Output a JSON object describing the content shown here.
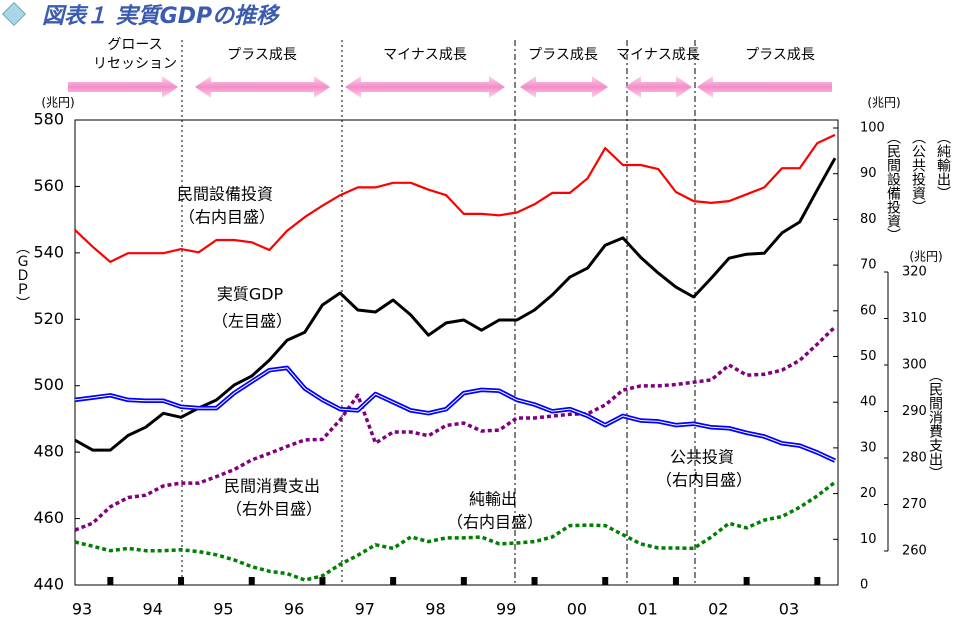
{
  "chart_data": {
    "type": "line",
    "title": "図表１ 実質GDPの推移",
    "phases": [
      [
        "グロース",
        "リセッション"
      ],
      [
        "プラス成長"
      ],
      [
        "マイナス成長"
      ],
      [
        "プラス成長"
      ],
      [
        "マイナス成長"
      ],
      [
        "プラス成長"
      ]
    ],
    "yunit": "(兆円)",
    "y2unit": "(兆円)",
    "y3unit": "(兆円)",
    "ylabel": "（ＧＤＰ）",
    "y2label": [
      "（民間設備投資）",
      "（公共投資）",
      "（純輸出）"
    ],
    "y3label": "（民間消費支出）",
    "categories": [
      "93",
      null,
      null,
      null,
      "94",
      null,
      null,
      null,
      "95",
      null,
      null,
      null,
      "96",
      null,
      null,
      null,
      "97",
      null,
      null,
      null,
      "98",
      null,
      null,
      null,
      "99",
      null,
      null,
      null,
      "00",
      null,
      null,
      null,
      "01",
      null,
      null,
      null,
      "02",
      null,
      null,
      null,
      "03",
      null,
      null,
      null
    ],
    "ylim": [
      440,
      580
    ],
    "yticks": [
      440,
      460,
      480,
      500,
      520,
      540,
      560,
      580
    ],
    "y2lim": [
      0,
      100
    ],
    "y2ticks": [
      0,
      10,
      20,
      30,
      40,
      50,
      60,
      70,
      80,
      90,
      100
    ],
    "y3lim": [
      260,
      320
    ],
    "y3ticks": [
      260,
      270,
      280,
      290,
      300,
      310,
      320
    ],
    "series": [
      {
        "name": "民間設備投資",
        "note": "（右内目盛）",
        "color": "#ff0000",
        "axis": "y2",
        "style": "solid",
        "values": [
          77.7,
          74,
          70.7,
          72.6,
          72.6,
          72.6,
          73.5,
          72.8,
          75.5,
          75.5,
          75,
          73.3,
          77.5,
          80.5,
          83,
          85.3,
          87,
          87,
          88,
          88,
          86.5,
          85.3,
          81.2,
          81.2,
          80.9,
          81.5,
          83.3,
          85.8,
          85.8,
          89,
          95.6,
          91.9,
          91.9,
          91,
          86,
          84,
          83.6,
          84,
          85.5,
          87,
          91.2,
          91.2,
          96.7,
          98.5
        ]
      },
      {
        "name": "実質GDP",
        "note": "（左目盛）",
        "color": "#000000",
        "axis": "y",
        "style": "bold",
        "values": [
          483.6,
          480.6,
          480.6,
          485,
          487.5,
          491.7,
          490.5,
          493.3,
          495.7,
          500.2,
          502.9,
          507.7,
          513.7,
          516.1,
          524.3,
          527.9,
          522.8,
          522.2,
          525.8,
          521.3,
          515.2,
          518.9,
          519.8,
          516.7,
          519.8,
          519.8,
          522.8,
          527.3,
          532.7,
          535.4,
          542.3,
          544.5,
          538.7,
          533.9,
          529.7,
          526.7,
          532.4,
          538.4,
          539.6,
          539.9,
          546,
          549.3,
          559,
          568.5
        ]
      },
      {
        "name": "民間消費支出",
        "note": "（右外目盛）",
        "color": "#800080",
        "axis": "y3",
        "style": "dotted",
        "values": [
          264.5,
          266,
          269.5,
          271.5,
          272,
          274,
          274.6,
          274.6,
          276,
          277.5,
          279.6,
          281,
          282.5,
          283.9,
          284,
          288.2,
          293.5,
          283.2,
          285.6,
          285.6,
          284.8,
          287,
          287.5,
          285.8,
          286,
          288.6,
          288.6,
          289,
          289.4,
          289.5,
          291.4,
          294.6,
          295.5,
          295.5,
          295.8,
          296.3,
          296.8,
          300,
          297.8,
          298,
          298.9,
          301,
          304.5,
          308.2
        ]
      },
      {
        "name": "純輸出",
        "note": "（右内目盛）",
        "color": "#008000",
        "axis": "y2",
        "style": "dotted",
        "values": [
          9.4,
          8.5,
          7.5,
          8,
          7.5,
          7.5,
          7.7,
          7.3,
          6.6,
          5.5,
          4,
          3,
          2.5,
          1.1,
          2,
          4.5,
          6.5,
          8.8,
          8,
          10.5,
          9.5,
          10.3,
          10.3,
          10.5,
          9,
          9.2,
          9.5,
          10.5,
          13,
          13.1,
          13,
          11,
          9,
          8.1,
          8.1,
          8,
          10.5,
          13.5,
          12.5,
          14.2,
          15,
          17,
          19.5,
          22.5
        ]
      },
      {
        "name": "公共投資",
        "note": "（右内目盛）",
        "color": "#0000ff",
        "axis": "y2",
        "style": "double",
        "values": [
          40.5,
          41,
          41.5,
          40.5,
          40.3,
          40.3,
          39,
          38.7,
          38.7,
          42,
          44.5,
          47,
          47.5,
          43,
          40.5,
          38.5,
          38.2,
          41.8,
          40,
          38.2,
          37.6,
          38.5,
          42,
          42.7,
          42.5,
          40.5,
          39.5,
          38,
          38.5,
          37,
          35,
          37,
          36,
          35.8,
          35,
          35.3,
          34.5,
          34.3,
          33.3,
          32.5,
          31,
          30.5,
          29,
          27.2
        ]
      }
    ]
  }
}
